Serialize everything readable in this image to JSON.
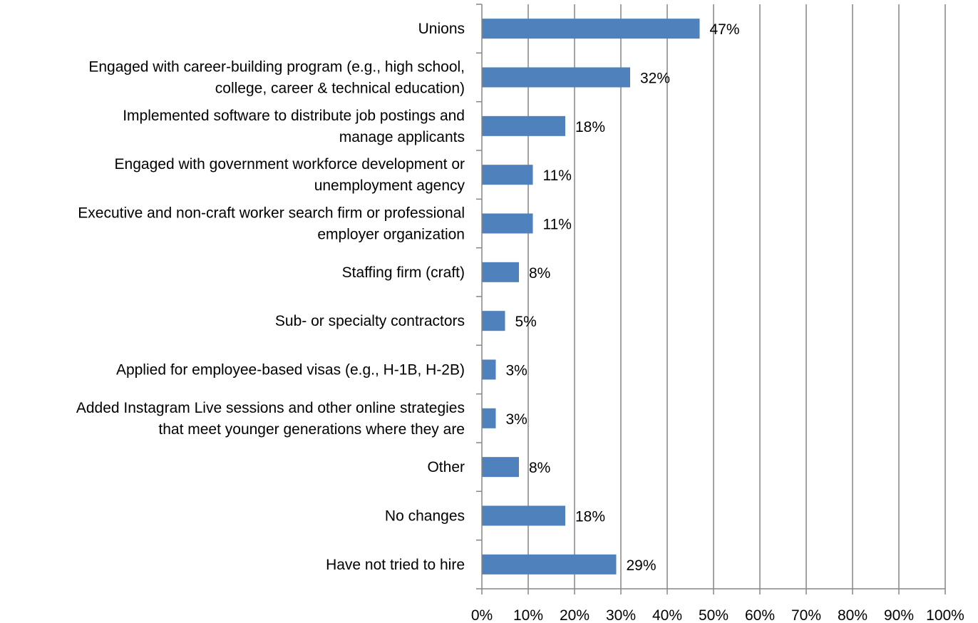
{
  "chart_data": {
    "type": "bar",
    "orientation": "horizontal",
    "categories": [
      [
        "Unions"
      ],
      [
        "Engaged with career-building program (e.g., high school,",
        "college, career & technical education)"
      ],
      [
        "Implemented software to distribute job postings and",
        "manage applicants"
      ],
      [
        "Engaged with government workforce development or",
        "unemployment agency"
      ],
      [
        "Executive and non-craft worker search firm or professional",
        "employer organization"
      ],
      [
        "Staffing firm (craft)"
      ],
      [
        "Sub- or specialty contractors"
      ],
      [
        "Applied for employee-based visas (e.g., H-1B, H-2B)"
      ],
      [
        "Added Instagram Live sessions and other online strategies",
        "that meet younger generations where they are"
      ],
      [
        "Other"
      ],
      [
        "No changes"
      ],
      [
        "Have not tried to hire"
      ]
    ],
    "values": [
      47,
      32,
      18,
      11,
      11,
      8,
      5,
      3,
      3,
      8,
      18,
      29
    ],
    "value_labels": [
      "47%",
      "32%",
      "18%",
      "11%",
      "11%",
      "8%",
      "5%",
      "3%",
      "3%",
      "8%",
      "18%",
      "29%"
    ],
    "xlim": [
      0,
      100
    ],
    "x_ticks": [
      "0%",
      "10%",
      "20%",
      "30%",
      "40%",
      "50%",
      "60%",
      "70%",
      "80%",
      "90%",
      "100%"
    ],
    "title": "",
    "xlabel": "",
    "ylabel": "",
    "grid": "vertical",
    "legend": "none",
    "bar_color": "#4f81bd",
    "grid_color": "#868686"
  }
}
